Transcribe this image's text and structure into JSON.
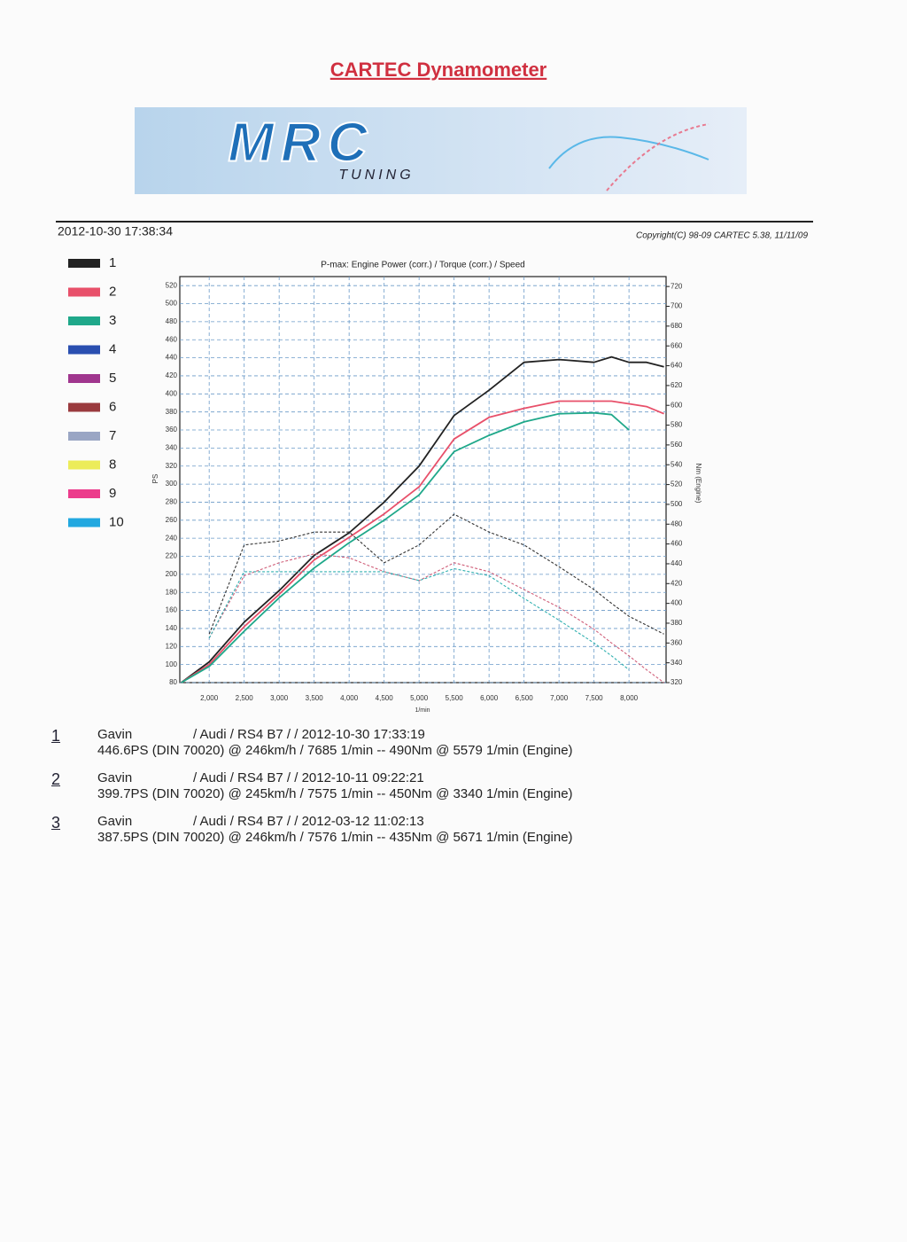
{
  "header": {
    "title": "CARTEC Dynamometer",
    "timestamp": "2012-10-30 17:38:34",
    "copyright": "Copyright(C) 98-09 CARTEC 5.38, 11/11/09"
  },
  "banner": {
    "logo": "MRC",
    "tagline": "TUNING"
  },
  "legend": [
    {
      "label": "1",
      "color": "#222222"
    },
    {
      "label": "2",
      "color": "#e8506a"
    },
    {
      "label": "3",
      "color": "#1fa88a"
    },
    {
      "label": "4",
      "color": "#2a4fb0"
    },
    {
      "label": "5",
      "color": "#a0368e"
    },
    {
      "label": "6",
      "color": "#9a3a3e"
    },
    {
      "label": "7",
      "color": "#9aa6c4"
    },
    {
      "label": "8",
      "color": "#ecec5a"
    },
    {
      "label": "9",
      "color": "#ec3c8c"
    },
    {
      "label": "10",
      "color": "#22a8e0"
    }
  ],
  "chart_data": {
    "type": "line",
    "title": "P-max: Engine Power (corr.) / Torque (corr.) / Speed",
    "y_label": "PS",
    "y2_label": "Nm (Engine)",
    "x_label": "1/min",
    "grid": true,
    "x": [
      1600,
      2000,
      2500,
      3000,
      3500,
      4000,
      4500,
      5000,
      5500,
      6000,
      6500,
      7000,
      7500,
      7750,
      8000,
      8250,
      8500
    ],
    "xlim": [
      1580,
      8530
    ],
    "xticks": [
      {
        "value": 2000,
        "label": "2,000"
      },
      {
        "value": 2500,
        "label": "2,500"
      },
      {
        "value": 3000,
        "label": "3,000"
      },
      {
        "value": 3500,
        "label": "3,500"
      },
      {
        "value": 4000,
        "label": "4,000"
      },
      {
        "value": 4500,
        "label": "4,500"
      },
      {
        "value": 5000,
        "label": "5,000"
      },
      {
        "value": 5500,
        "label": "5,500"
      },
      {
        "value": 6000,
        "label": "6,000"
      },
      {
        "value": 6500,
        "label": "6,500"
      },
      {
        "value": 7000,
        "label": "7,000"
      },
      {
        "value": 7500,
        "label": "7,500"
      },
      {
        "value": 8000,
        "label": "8,000"
      }
    ],
    "ylim": [
      80,
      530
    ],
    "yticks": [
      80,
      100,
      120,
      140,
      160,
      180,
      200,
      220,
      240,
      260,
      280,
      300,
      320,
      340,
      360,
      380,
      400,
      420,
      440,
      460,
      480,
      500,
      520
    ],
    "y2lim": [
      320,
      730
    ],
    "y2ticks": [
      320,
      340,
      360,
      380,
      400,
      420,
      440,
      460,
      480,
      500,
      520,
      540,
      560,
      580,
      600,
      620,
      640,
      660,
      680,
      700,
      720
    ],
    "series": [
      {
        "color": "#222222",
        "style": "solid",
        "values": [
          80,
          103,
          147,
          182,
          221,
          246,
          280,
          320,
          376,
          404,
          435,
          438,
          435,
          441,
          435,
          435,
          430
        ]
      },
      {
        "color": "#e8506a",
        "style": "solid",
        "values": [
          80,
          100,
          142,
          178,
          216,
          241,
          267,
          297,
          350,
          374,
          384,
          392,
          392,
          392,
          389,
          386,
          378
        ]
      },
      {
        "color": "#1fa88a",
        "style": "solid",
        "values": [
          80,
          98,
          137,
          174,
          207,
          235,
          260,
          288,
          336,
          354,
          369,
          378,
          379,
          377,
          360,
          null,
          null
        ]
      },
      {
        "color": "#333333",
        "style": "dashed",
        "axis": "y2",
        "values": [
          null,
          369,
          459,
          463,
          472,
          472,
          441,
          459,
          490,
          472,
          459,
          437,
          414,
          400,
          387,
          378,
          369
        ]
      },
      {
        "color": "#d0607a",
        "style": "dashed",
        "axis": "y2",
        "values": [
          null,
          365,
          428,
          441,
          450,
          446,
          432,
          423,
          441,
          432,
          414,
          396,
          374,
          360,
          347,
          333,
          320
        ]
      },
      {
        "color": "#30b0b0",
        "style": "dashed",
        "axis": "y2",
        "values": [
          null,
          365,
          432,
          432,
          432,
          432,
          432,
          423,
          435,
          428,
          405,
          383,
          360,
          347,
          333,
          null,
          null
        ]
      }
    ]
  },
  "runs": [
    {
      "number": "1",
      "driver": "Gavin",
      "vehicle": "/ Audi / RS4 B7 /  / 2012-10-30 17:33:19",
      "result": "446.6PS (DIN 70020) @ 246km/h / 7685 1/min -- 490Nm @ 5579 1/min (Engine)"
    },
    {
      "number": "2",
      "driver": "Gavin",
      "vehicle": "/ Audi / RS4 B7 /  / 2012-10-11 09:22:21",
      "result": "399.7PS (DIN 70020) @ 245km/h / 7575 1/min -- 450Nm @ 3340 1/min (Engine)"
    },
    {
      "number": "3",
      "driver": "Gavin",
      "vehicle": "/ Audi / RS4 B7 /  / 2012-03-12 11:02:13",
      "result": "387.5PS (DIN 70020) @ 246km/h / 7576 1/min -- 435Nm @ 5671 1/min (Engine)"
    }
  ]
}
